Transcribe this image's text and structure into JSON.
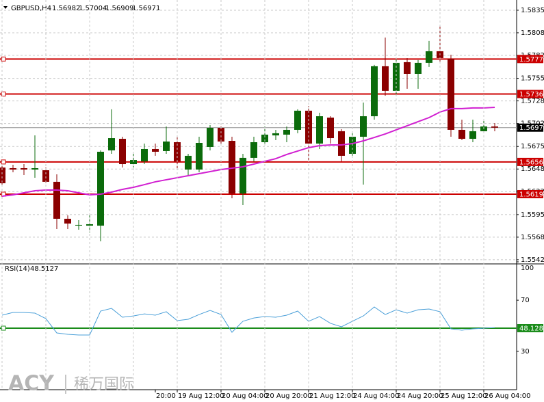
{
  "chart_data": [
    {
      "type": "candlestick",
      "symbol": "GBPUSD,H4",
      "header_values": [
        1.56982,
        1.57004,
        1.56909,
        1.56971
      ],
      "categories": [
        null,
        null,
        null,
        null,
        null,
        null,
        null,
        null,
        null,
        null,
        null,
        null,
        null,
        null,
        "20:00",
        null,
        "19 Aug 12:00",
        null,
        null,
        null,
        "20 Aug 04:00",
        null,
        null,
        null,
        "20 Aug 20:00",
        null,
        null,
        null,
        "21 Aug 12:00",
        null,
        null,
        null,
        "24 Aug 04:00",
        null,
        null,
        null,
        "24 Aug 20:00",
        null,
        null,
        null,
        "25 Aug 12:00",
        null,
        null,
        null,
        "26 Aug 04:00",
        null
      ],
      "open": [
        1.56503,
        1.56495,
        1.56495,
        1.56479,
        1.56471,
        1.56335,
        1.55901,
        1.55829,
        1.5582,
        1.5582,
        1.56704,
        1.5684,
        1.56543,
        1.56575,
        1.5672,
        1.56696,
        1.568,
        1.56479,
        1.56479,
        1.56744,
        1.56969,
        1.56816,
        1.56198,
        1.56616,
        1.568,
        1.5688,
        1.56889,
        1.56945,
        1.5717,
        1.56784,
        1.57089,
        1.56929,
        1.56664,
        1.56864,
        1.57105,
        1.57692,
        1.57403,
        1.5774,
        1.57603,
        1.57732,
        1.57868,
        1.5778,
        1.56945,
        1.5684,
        1.56929,
        1.56985
      ],
      "high": [
        1.56543,
        1.56535,
        1.56543,
        1.5688,
        1.56503,
        1.56423,
        1.55941,
        1.55885,
        1.55965,
        1.56704,
        1.57186,
        1.56864,
        1.56664,
        1.56784,
        1.56784,
        1.56985,
        1.56864,
        1.56664,
        1.56864,
        1.57001,
        1.56985,
        1.56864,
        1.56664,
        1.56864,
        1.56985,
        1.56945,
        1.56985,
        1.57186,
        1.57226,
        1.57146,
        1.57105,
        1.56953,
        1.56905,
        1.57266,
        1.57708,
        1.58029,
        1.57788,
        1.57788,
        1.57764,
        1.57989,
        1.58165,
        1.57828,
        1.57065,
        1.57065,
        1.57065,
        1.57025
      ],
      "low": [
        1.56302,
        1.56447,
        1.56415,
        1.56383,
        1.56318,
        1.5578,
        1.5578,
        1.55772,
        1.5574,
        1.55636,
        1.56664,
        1.56503,
        1.56503,
        1.56543,
        1.5664,
        1.56664,
        1.56479,
        1.56399,
        1.56447,
        1.56704,
        1.56784,
        1.56142,
        1.56061,
        1.56575,
        1.56768,
        1.56824,
        1.568,
        1.56905,
        1.56583,
        1.5672,
        1.56784,
        1.56575,
        1.5664,
        1.56302,
        1.57065,
        1.57346,
        1.57346,
        1.57427,
        1.57427,
        1.57684,
        1.57732,
        1.56864,
        1.56824,
        1.568,
        1.56905,
        1.56929
      ],
      "close": [
        1.56318,
        1.56479,
        1.56479,
        1.56495,
        1.56335,
        1.55901,
        1.55845,
        1.55829,
        1.55837,
        1.56688,
        1.56848,
        1.56543,
        1.56591,
        1.5672,
        1.56688,
        1.56808,
        1.56575,
        1.5664,
        1.56792,
        1.56969,
        1.56808,
        1.56198,
        1.56616,
        1.568,
        1.56889,
        1.56905,
        1.56945,
        1.5717,
        1.56784,
        1.57105,
        1.56848,
        1.5664,
        1.56864,
        1.57105,
        1.57692,
        1.57403,
        1.57732,
        1.57603,
        1.57732,
        1.57868,
        1.57788,
        1.56945,
        1.5684,
        1.56929,
        1.56985,
        1.56971
      ],
      "up_color": "#0b6b0b",
      "down_color": "#8b0000",
      "ma": {
        "color": "#d11fd1",
        "values": [
          1.56166,
          1.56182,
          1.56206,
          1.5623,
          1.56238,
          1.56238,
          1.5623,
          1.56206,
          1.56182,
          1.5619,
          1.56214,
          1.56246,
          1.5627,
          1.56302,
          1.56335,
          1.56359,
          1.56383,
          1.56407,
          1.56431,
          1.56455,
          1.56479,
          1.56495,
          1.56511,
          1.56543,
          1.56575,
          1.56607,
          1.56656,
          1.56696,
          1.56736,
          1.5676,
          1.56768,
          1.56768,
          1.56784,
          1.56816,
          1.56856,
          1.56897,
          1.56945,
          1.56993,
          1.57041,
          1.57089,
          1.57154,
          1.57194,
          1.57194,
          1.57202,
          1.57202,
          1.5721
        ]
      },
      "hlines": [
        1.57777,
        1.57366,
        1.56568,
        {
          "value": 1.5619,
          "label": "1.56190"
        }
      ],
      "hline_color": "#cc0000",
      "current_price": 1.56971,
      "ylim": [
        1.55379,
        1.5847
      ],
      "yticks": [
        {
          "value": 1.5835,
          "label": "1.58350"
        },
        1.58085,
        {
          "value": 1.5782,
          "label": "1.57820"
        },
        {
          "value": 1.5755,
          "label": "1.57550"
        },
        1.57285,
        {
          "value": 1.5702,
          "label": "1.57020"
        },
        {
          "value": 1.5675,
          "label": "1.56750"
        },
        1.56485,
        {
          "value": 1.5622,
          "label": "1.56220"
        },
        {
          "value": 1.5595,
          "label": "1.55950"
        },
        1.55685,
        {
          "value": 1.5542,
          "label": "1.55420"
        }
      ],
      "grid": true
    },
    {
      "type": "line",
      "name": "RSI(14)",
      "value": 48.5127,
      "color": "#4a9fd8",
      "values": [
        58.3,
        60.4,
        60.4,
        59.9,
        55.6,
        44.4,
        43.3,
        42.8,
        42.8,
        61.5,
        63.6,
        56.7,
        57.7,
        59.3,
        58.3,
        61,
        54,
        55.1,
        58.8,
        62,
        58.8,
        44.9,
        53.5,
        56.1,
        57.2,
        56.7,
        58.3,
        61.5,
        53.5,
        57.2,
        51.9,
        49.2,
        53.5,
        57.7,
        64.7,
        58.8,
        62.5,
        59.9,
        62.5,
        63.1,
        61,
        47.6,
        46.5,
        47.6,
        48.1,
        48.5
      ],
      "ylim": [
        0,
        100
      ],
      "yticks": [
        100,
        70,
        30
      ],
      "level": 48.1283,
      "level_color": "#1a8c1a"
    }
  ],
  "watermark": {
    "brand": "ACY",
    "name": "稀万国际"
  }
}
